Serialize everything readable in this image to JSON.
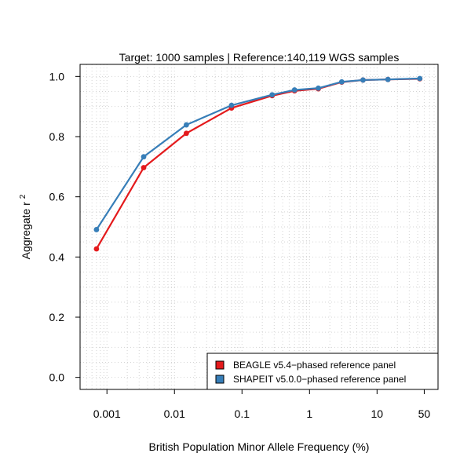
{
  "chart_data": {
    "type": "line",
    "title": "Target: 1000 samples | Reference:140,119 WGS samples",
    "xlabel": "British Population Minor Allele Frequency (%)",
    "ylabel": "Aggregate r",
    "ylabel_superscript": "2",
    "x_scale": "log",
    "xlim": [
      0.0004,
      80
    ],
    "ylim": [
      -0.04,
      1.04
    ],
    "x_ticks": [
      0.001,
      0.01,
      0.1,
      1,
      10,
      50
    ],
    "x_tick_labels": [
      "0.001",
      "0.01",
      "0.1",
      "1",
      "10",
      "50"
    ],
    "y_ticks": [
      0.0,
      0.2,
      0.4,
      0.6,
      0.8,
      1.0
    ],
    "y_tick_labels": [
      "0.0",
      "0.2",
      "0.4",
      "0.6",
      "0.8",
      "1.0"
    ],
    "grid": true,
    "legend_position": "bottom-right",
    "series": [
      {
        "name": "BEAGLE v5.4−phased reference panel",
        "color": "#e41a1c",
        "x": [
          0.0007,
          0.0035,
          0.015,
          0.07,
          0.28,
          0.6,
          1.35,
          3.0,
          6.2,
          14.5,
          43
        ],
        "y": [
          0.427,
          0.697,
          0.811,
          0.895,
          0.936,
          0.952,
          0.959,
          0.981,
          0.988,
          0.99,
          0.992
        ]
      },
      {
        "name": "SHAPEIT v5.0.0−phased reference panel",
        "color": "#377eb8",
        "x": [
          0.0007,
          0.0035,
          0.015,
          0.07,
          0.28,
          0.6,
          1.35,
          3.0,
          6.2,
          14.5,
          43
        ],
        "y": [
          0.491,
          0.733,
          0.839,
          0.904,
          0.939,
          0.955,
          0.961,
          0.982,
          0.988,
          0.99,
          0.993
        ]
      }
    ]
  }
}
